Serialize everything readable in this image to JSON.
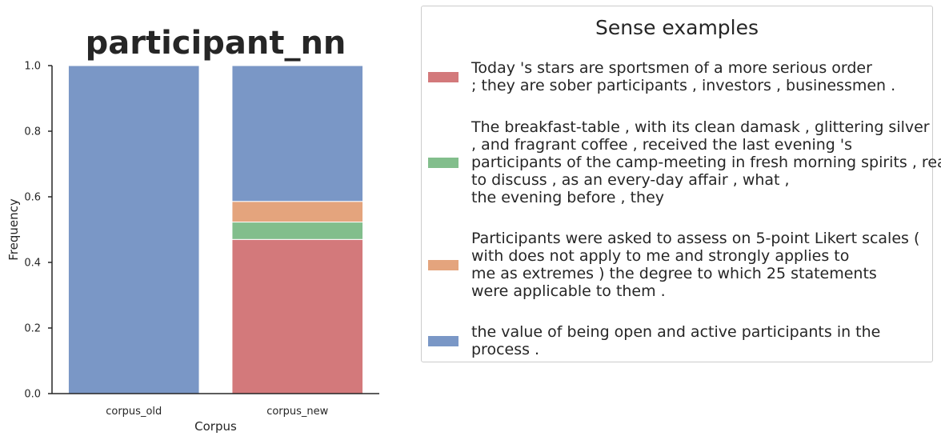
{
  "chart_data": {
    "type": "bar",
    "stacked": true,
    "title": "participant_nn",
    "xlabel": "Corpus",
    "ylabel": "Frequency",
    "ylim": [
      0,
      1
    ],
    "yticks": [
      "0.0",
      "0.2",
      "0.4",
      "0.6",
      "0.8",
      "1.0"
    ],
    "categories": [
      "corpus_old",
      "corpus_new"
    ],
    "series": [
      {
        "name": "Today 's stars are sportsmen of a more serious order\n; they are sober participants , investors , businessmen .",
        "color": "#d3797b",
        "values": [
          0,
          0.47
        ]
      },
      {
        "name": "The breakfast-table , with its clean damask , glittering silver\n, and fragrant coffee , received the last evening 's\nparticipants of the camp-meeting in fresh morning spirits , ready\nto discuss , as an every-day affair , what ,\nthe evening before , they",
        "color": "#82be8c",
        "values": [
          0,
          0.053
        ]
      },
      {
        "name": "Participants were asked to assess on 5-point Likert scales (\nwith does not apply to me and strongly applies to\nme as extremes ) the degree to which 25 statements\nwere applicable to them .",
        "color": "#e4a47d",
        "values": [
          0,
          0.063
        ]
      },
      {
        "name": "the value of being open and active participants in the\nprocess .",
        "color": "#7a97c6",
        "values": [
          1.0,
          0.414
        ]
      }
    ],
    "legend": {
      "title": "Sense examples",
      "placement": "right",
      "order": [
        0,
        1,
        2,
        3
      ]
    },
    "grid": false
  }
}
